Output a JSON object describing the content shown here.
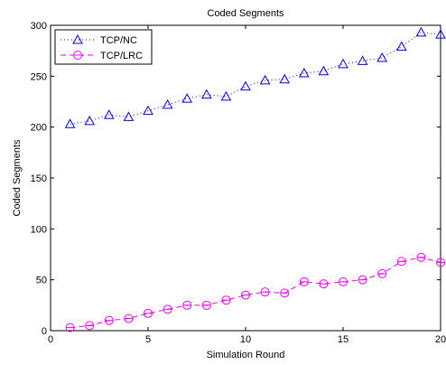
{
  "chart_data": {
    "type": "line",
    "title": "Coded Segments",
    "xlabel": "Simulation Round",
    "ylabel": "Coded Segments",
    "xlim": [
      0,
      20
    ],
    "ylim": [
      0,
      300
    ],
    "xticks": [
      0,
      5,
      10,
      15,
      20
    ],
    "yticks": [
      0,
      50,
      100,
      150,
      200,
      250,
      300
    ],
    "grid": false,
    "legend_position": "top-left",
    "x": [
      1,
      2,
      3,
      4,
      5,
      6,
      7,
      8,
      9,
      10,
      11,
      12,
      13,
      14,
      15,
      16,
      17,
      18,
      19,
      20
    ],
    "series": [
      {
        "name": "TCP/NC",
        "color": "#0000ff",
        "marker": "triangle",
        "line_style": "dotted",
        "values": [
          203,
          206,
          212,
          210,
          216,
          222,
          228,
          232,
          230,
          240,
          246,
          247,
          253,
          255,
          262,
          265,
          268,
          279,
          293,
          291
        ]
      },
      {
        "name": "TCP/LRC",
        "color": "#ff00ff",
        "marker": "circle",
        "line_style": "dashed",
        "values": [
          3,
          5,
          10,
          12,
          17,
          21,
          25,
          25,
          30,
          35,
          38,
          37,
          48,
          46,
          48,
          50,
          56,
          68,
          72,
          67
        ]
      }
    ]
  }
}
